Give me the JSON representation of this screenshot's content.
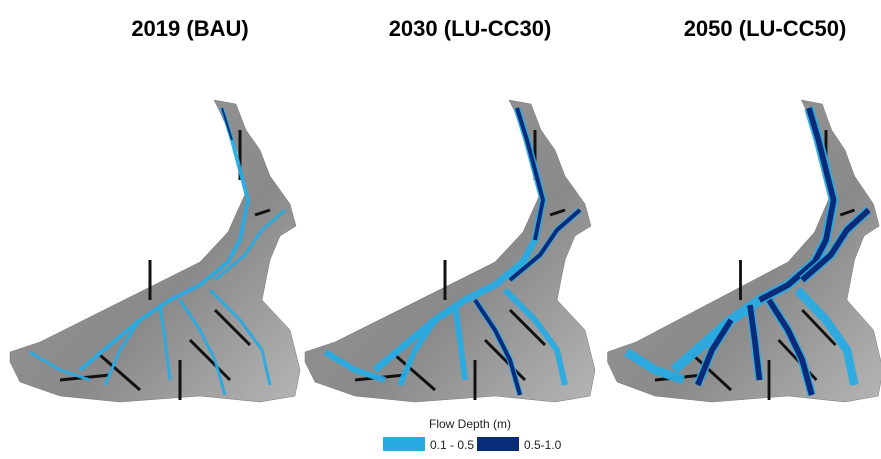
{
  "panels": [
    {
      "title": "2019 (BAU)"
    },
    {
      "title": "2030 (LU-CC30)"
    },
    {
      "title": "2050 (LU-CC50)"
    }
  ],
  "legend": {
    "title": "Flow Depth (m)",
    "items": [
      {
        "label": "0.1 - 0.5",
        "color": "#29abe2"
      },
      {
        "label": "0.5-1.0",
        "color": "#0a2a7a"
      }
    ]
  }
}
